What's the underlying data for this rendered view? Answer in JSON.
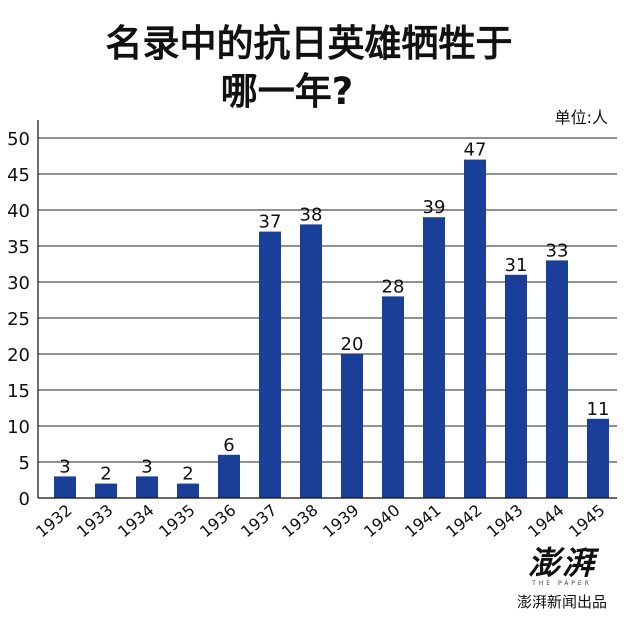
{
  "chart_data": {
    "type": "bar",
    "title": "名录中的抗日英雄牺牲于哪一年?",
    "title_line1": "名录中的抗日英雄牺牲于",
    "title_line2": "哪一年?",
    "unit_label": "单位:人",
    "categories": [
      "1932",
      "1933",
      "1934",
      "1935",
      "1936",
      "1937",
      "1938",
      "1939",
      "1940",
      "1941",
      "1942",
      "1943",
      "1944",
      "1945"
    ],
    "values": [
      3,
      2,
      3,
      2,
      6,
      37,
      38,
      20,
      28,
      39,
      47,
      31,
      33,
      11
    ],
    "data_labels": [
      "3",
      "2",
      "3",
      "2",
      "6",
      "37",
      "38",
      "20",
      "28",
      "39",
      "47",
      "31",
      "33",
      "11"
    ],
    "y_ticks": [
      "0",
      "5",
      "10",
      "15",
      "20",
      "25",
      "30",
      "35",
      "40",
      "45",
      "50"
    ],
    "ylim": [
      0,
      50
    ],
    "grid": true,
    "bar_color": "#1a3f99",
    "legend": "none"
  },
  "credit": {
    "logo_text": "澎湃",
    "logo_small": "THE PAPER",
    "source": "澎湃新闻出品"
  }
}
